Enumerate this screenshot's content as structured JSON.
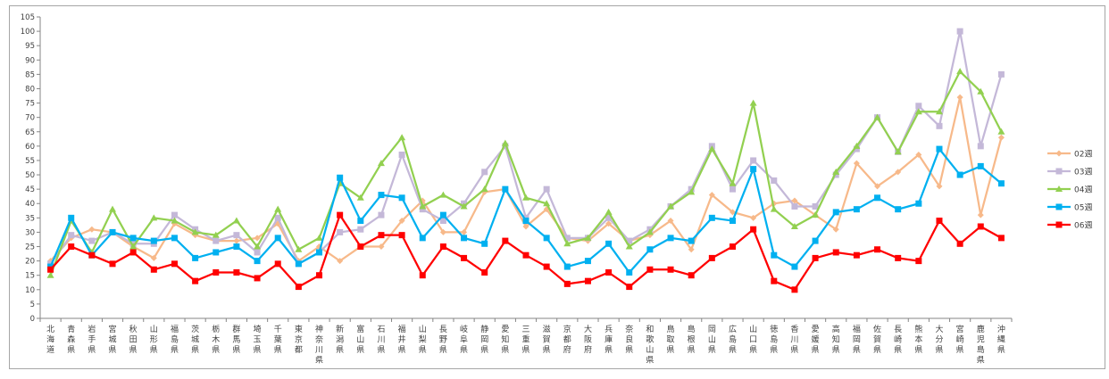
{
  "chart_data": {
    "type": "line",
    "ylim": [
      0,
      105
    ],
    "y_ticks": [
      0,
      5,
      10,
      15,
      20,
      25,
      30,
      35,
      40,
      45,
      50,
      55,
      60,
      65,
      70,
      75,
      80,
      85,
      90,
      95,
      100,
      105
    ],
    "grid": false,
    "legend_position": "right",
    "categories": [
      "北海道",
      "青森県",
      "岩手県",
      "宮城県",
      "秋田県",
      "山形県",
      "福島県",
      "茨城県",
      "栃木県",
      "群馬県",
      "埼玉県",
      "千葉県",
      "東京都",
      "神奈川県",
      "新潟県",
      "富山県",
      "石川県",
      "福井県",
      "山梨県",
      "長野県",
      "岐阜県",
      "静岡県",
      "愛知県",
      "三重県",
      "滋賀県",
      "京都府",
      "大阪府",
      "兵庫県",
      "奈良県",
      "和歌山県",
      "鳥取県",
      "島根県",
      "岡山県",
      "広島県",
      "山口県",
      "徳島県",
      "香川県",
      "愛媛県",
      "高知県",
      "福岡県",
      "佐賀県",
      "長崎県",
      "熊本県",
      "大分県",
      "宮崎県",
      "鹿児島県",
      "沖縄県"
    ],
    "series": [
      {
        "name": "02週",
        "color": "#f7b98a",
        "marker": "diamond",
        "values": [
          20,
          28,
          31,
          30,
          25,
          21,
          33,
          29,
          27,
          27,
          28,
          33,
          20,
          25,
          20,
          25,
          25,
          34,
          41,
          30,
          30,
          44,
          45,
          32,
          38,
          28,
          27,
          33,
          27,
          29,
          34,
          24,
          43,
          37,
          35,
          40,
          41,
          36,
          31,
          54,
          46,
          51,
          57,
          46,
          77,
          36,
          63
        ]
      },
      {
        "name": "03週",
        "color": "#c4b8d8",
        "marker": "square",
        "values": [
          19,
          29,
          27,
          30,
          26,
          26,
          36,
          31,
          27,
          29,
          23,
          35,
          19,
          23,
          30,
          31,
          36,
          57,
          38,
          34,
          40,
          51,
          60,
          35,
          45,
          28,
          28,
          35,
          27,
          31,
          39,
          45,
          60,
          45,
          55,
          48,
          39,
          39,
          50,
          59,
          70,
          58,
          74,
          67,
          100,
          60,
          85
        ]
      },
      {
        "name": "04週",
        "color": "#92d050",
        "marker": "triangle",
        "values": [
          15,
          34,
          23,
          38,
          25,
          35,
          34,
          30,
          29,
          34,
          25,
          38,
          24,
          28,
          47,
          42,
          54,
          63,
          39,
          43,
          39,
          45,
          61,
          42,
          40,
          26,
          28,
          37,
          25,
          30,
          39,
          44,
          59,
          47,
          75,
          38,
          32,
          36,
          51,
          60,
          70,
          58,
          72,
          72,
          86,
          79,
          65
        ]
      },
      {
        "name": "05週",
        "color": "#00b0f0",
        "marker": "square",
        "values": [
          18,
          35,
          22,
          30,
          28,
          27,
          28,
          21,
          23,
          25,
          20,
          28,
          19,
          23,
          49,
          34,
          43,
          42,
          28,
          36,
          28,
          26,
          45,
          34,
          28,
          18,
          20,
          26,
          16,
          24,
          28,
          27,
          35,
          34,
          52,
          22,
          18,
          27,
          37,
          38,
          42,
          38,
          40,
          59,
          50,
          53,
          47
        ]
      },
      {
        "name": "06週",
        "color": "#ff0000",
        "marker": "square",
        "values": [
          17,
          25,
          22,
          19,
          23,
          17,
          19,
          13,
          16,
          16,
          14,
          19,
          11,
          15,
          36,
          25,
          29,
          29,
          15,
          25,
          21,
          16,
          27,
          22,
          18,
          12,
          13,
          16,
          11,
          17,
          17,
          15,
          21,
          25,
          31,
          13,
          10,
          21,
          23,
          22,
          24,
          21,
          20,
          34,
          26,
          32,
          28
        ]
      }
    ]
  }
}
